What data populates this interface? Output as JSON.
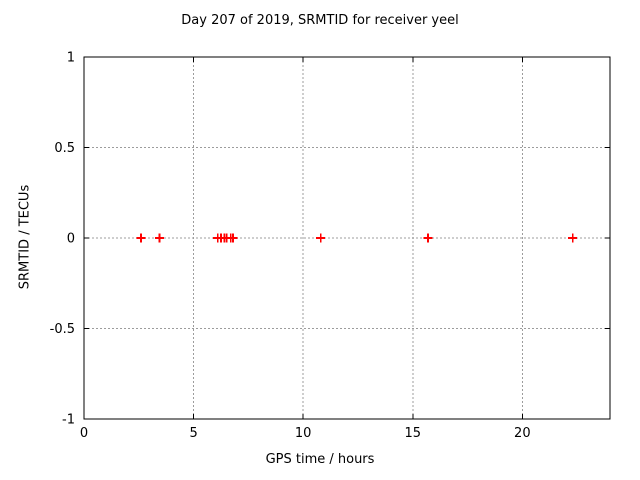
{
  "chart_data": {
    "type": "scatter",
    "title": "Day 207 of 2019, SRMTID for receiver yeel",
    "xlabel": "GPS time / hours",
    "ylabel": "SRMTID / TECUs",
    "xlim": [
      0,
      24
    ],
    "ylim": [
      -1,
      1
    ],
    "xticks": [
      0,
      5,
      10,
      15,
      20
    ],
    "yticks": [
      -1,
      -0.5,
      0,
      0.5,
      1
    ],
    "grid": true,
    "legend": "none",
    "marker": "plus",
    "marker_color": "#ff0000",
    "grid_color": "#9c9c9c",
    "axis_color": "#000000",
    "background_color": "#ffffff",
    "series": [
      {
        "name": "SRMTID",
        "x": [
          2.6,
          3.45,
          6.1,
          6.25,
          6.4,
          6.5,
          6.7,
          6.8,
          10.8,
          15.7,
          22.3
        ],
        "y": [
          0,
          0,
          0,
          0,
          0,
          0,
          0,
          0,
          0,
          0,
          0
        ]
      }
    ]
  }
}
